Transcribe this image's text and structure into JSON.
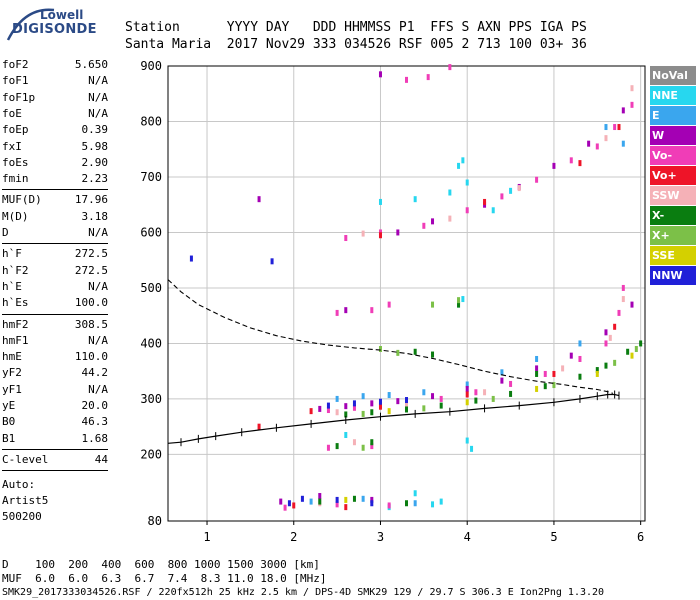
{
  "logo": {
    "line1": "Lowell",
    "line2": "DIGISONDE"
  },
  "header": {
    "line1": "Station      YYYY DAY   DDD HHMMSS P1  FFS S AXN PPS IGA PS",
    "line2": "Santa Maria  2017 Nov29 333 034526 RSF 005 2 713 100 03+ 36"
  },
  "params": {
    "group1": [
      {
        "name": "foF2",
        "value": "5.650"
      },
      {
        "name": "foF1",
        "value": "N/A"
      },
      {
        "name": "foF1p",
        "value": "N/A"
      },
      {
        "name": "foE",
        "value": "N/A"
      },
      {
        "name": "foEp",
        "value": "0.39"
      },
      {
        "name": "fxI",
        "value": "5.98"
      },
      {
        "name": "foEs",
        "value": "2.90"
      },
      {
        "name": "fmin",
        "value": "2.23"
      }
    ],
    "group2": [
      {
        "name": "MUF(D)",
        "value": "17.96"
      },
      {
        "name": "M(D)",
        "value": "3.18"
      },
      {
        "name": "D",
        "value": "N/A"
      }
    ],
    "group3": [
      {
        "name": "h`F",
        "value": "272.5"
      },
      {
        "name": "h`F2",
        "value": "272.5"
      },
      {
        "name": "h`E",
        "value": "N/A"
      },
      {
        "name": "h`Es",
        "value": "100.0"
      }
    ],
    "group4": [
      {
        "name": "hmF2",
        "value": "308.5"
      },
      {
        "name": "hmF1",
        "value": "N/A"
      },
      {
        "name": "hmE",
        "value": "110.0"
      },
      {
        "name": "yF2",
        "value": "44.2"
      },
      {
        "name": "yF1",
        "value": "N/A"
      },
      {
        "name": "yE",
        "value": "20.0"
      },
      {
        "name": "B0",
        "value": "46.3"
      },
      {
        "name": "B1",
        "value": "1.68"
      }
    ],
    "group5": [
      {
        "name": "C-level",
        "value": "44"
      }
    ],
    "auto_label": "Auto:",
    "artist": "Artist5",
    "code": "500200"
  },
  "legend": [
    {
      "label": "NoVal",
      "color": "#8c8c8c"
    },
    {
      "label": "NNE",
      "color": "#27d7ef"
    },
    {
      "label": "E",
      "color": "#3aa6ee"
    },
    {
      "label": "W",
      "color": "#a400b4"
    },
    {
      "label": "Vo-",
      "color": "#f03db7"
    },
    {
      "label": "Vo+",
      "color": "#ee1428"
    },
    {
      "label": "SSW",
      "color": "#f5b1b7"
    },
    {
      "label": "X-",
      "color": "#0a7d10"
    },
    {
      "label": "X+",
      "color": "#7cc048"
    },
    {
      "label": "SSE",
      "color": "#d4d000"
    },
    {
      "label": "NNW",
      "color": "#2020d8"
    }
  ],
  "chart_data": {
    "type": "scatter",
    "title": "",
    "xlabel": "",
    "ylabel": "",
    "xlim": [
      0.55,
      6.05
    ],
    "ylim": [
      80,
      900
    ],
    "x_ticks": [
      "1",
      "2",
      "3",
      "4",
      "5",
      "6"
    ],
    "y_ticks": [
      "80",
      "200",
      "300",
      "400",
      "500",
      "600",
      "700",
      "800",
      "900"
    ],
    "grid": true,
    "series": [
      {
        "name": "NoVal",
        "color": "#8c8c8c",
        "points": []
      },
      {
        "name": "NNE",
        "color": "#27d7ef",
        "points": [
          [
            3.0,
            655
          ],
          [
            3.4,
            660
          ],
          [
            3.8,
            672
          ],
          [
            4.0,
            690
          ],
          [
            3.9,
            720
          ],
          [
            3.95,
            730
          ],
          [
            3.9,
            470
          ],
          [
            3.95,
            480
          ],
          [
            4.0,
            225
          ],
          [
            4.05,
            210
          ],
          [
            3.7,
            115
          ],
          [
            4.3,
            640
          ],
          [
            4.5,
            675
          ],
          [
            2.6,
            235
          ],
          [
            3.1,
            105
          ],
          [
            3.4,
            130
          ],
          [
            3.6,
            110
          ]
        ]
      },
      {
        "name": "E",
        "color": "#3aa6ee",
        "points": [
          [
            2.5,
            300
          ],
          [
            2.8,
            305
          ],
          [
            3.1,
            307
          ],
          [
            3.5,
            312
          ],
          [
            4.0,
            326
          ],
          [
            4.4,
            348
          ],
          [
            4.8,
            372
          ],
          [
            5.3,
            400
          ],
          [
            2.2,
            115
          ],
          [
            2.8,
            120
          ],
          [
            3.4,
            112
          ],
          [
            5.6,
            790
          ],
          [
            5.8,
            760
          ]
        ]
      },
      {
        "name": "W",
        "color": "#a400b4",
        "points": [
          [
            2.3,
            282
          ],
          [
            2.6,
            287
          ],
          [
            2.9,
            292
          ],
          [
            3.2,
            296
          ],
          [
            3.6,
            305
          ],
          [
            4.0,
            318
          ],
          [
            4.4,
            333
          ],
          [
            4.8,
            355
          ],
          [
            5.2,
            378
          ],
          [
            5.6,
            420
          ],
          [
            5.9,
            470
          ],
          [
            1.85,
            115
          ],
          [
            2.3,
            125
          ],
          [
            2.9,
            118
          ],
          [
            3.2,
            600
          ],
          [
            3.6,
            620
          ],
          [
            4.2,
            650
          ],
          [
            4.6,
            682
          ],
          [
            5.0,
            720
          ],
          [
            5.4,
            760
          ],
          [
            5.8,
            820
          ],
          [
            1.6,
            660
          ],
          [
            2.6,
            460
          ],
          [
            3.0,
            885
          ]
        ]
      },
      {
        "name": "Vo-",
        "color": "#f03db7",
        "points": [
          [
            2.4,
            280
          ],
          [
            2.7,
            284
          ],
          [
            3.0,
            289
          ],
          [
            3.3,
            293
          ],
          [
            3.7,
            300
          ],
          [
            4.1,
            312
          ],
          [
            4.5,
            327
          ],
          [
            4.9,
            345
          ],
          [
            5.3,
            372
          ],
          [
            5.6,
            400
          ],
          [
            5.75,
            455
          ],
          [
            5.8,
            500
          ],
          [
            1.9,
            104
          ],
          [
            2.5,
            110
          ],
          [
            3.1,
            108
          ],
          [
            2.4,
            212
          ],
          [
            2.9,
            215
          ],
          [
            2.6,
            590
          ],
          [
            3.0,
            600
          ],
          [
            3.5,
            612
          ],
          [
            4.0,
            640
          ],
          [
            4.4,
            665
          ],
          [
            4.8,
            695
          ],
          [
            5.2,
            730
          ],
          [
            5.5,
            755
          ],
          [
            5.7,
            790
          ],
          [
            5.9,
            830
          ],
          [
            2.5,
            455
          ],
          [
            2.9,
            460
          ],
          [
            3.1,
            470
          ],
          [
            3.3,
            875
          ],
          [
            3.55,
            880
          ],
          [
            3.8,
            898
          ]
        ]
      },
      {
        "name": "Vo+",
        "color": "#ee1428",
        "points": [
          [
            2.2,
            278
          ],
          [
            3.0,
            286
          ],
          [
            4.0,
            308
          ],
          [
            5.0,
            345
          ],
          [
            5.7,
            430
          ],
          [
            3.0,
            595
          ],
          [
            4.2,
            655
          ],
          [
            5.3,
            725
          ],
          [
            5.75,
            790
          ],
          [
            2.0,
            108
          ],
          [
            2.6,
            105
          ],
          [
            1.6,
            250
          ]
        ]
      },
      {
        "name": "SSW",
        "color": "#f5b1b7",
        "points": [
          [
            2.5,
            276
          ],
          [
            3.3,
            290
          ],
          [
            4.2,
            312
          ],
          [
            5.1,
            355
          ],
          [
            5.65,
            410
          ],
          [
            5.8,
            480
          ],
          [
            2.8,
            598
          ],
          [
            3.8,
            625
          ],
          [
            4.6,
            680
          ],
          [
            5.6,
            770
          ],
          [
            5.9,
            860
          ],
          [
            2.3,
            112
          ],
          [
            2.7,
            222
          ]
        ]
      },
      {
        "name": "X-",
        "color": "#0a7d10",
        "points": [
          [
            2.6,
            272
          ],
          [
            2.9,
            276
          ],
          [
            3.3,
            281
          ],
          [
            3.7,
            288
          ],
          [
            4.1,
            297
          ],
          [
            4.5,
            309
          ],
          [
            4.9,
            323
          ],
          [
            5.3,
            340
          ],
          [
            5.6,
            360
          ],
          [
            5.85,
            385
          ],
          [
            6.0,
            400
          ],
          [
            2.3,
            115
          ],
          [
            2.7,
            120
          ],
          [
            3.3,
            112
          ],
          [
            3.4,
            385
          ],
          [
            3.6,
            380
          ],
          [
            3.9,
            470
          ],
          [
            2.5,
            215
          ],
          [
            2.9,
            222
          ],
          [
            4.8,
            345
          ],
          [
            5.5,
            352
          ]
        ]
      },
      {
        "name": "X+",
        "color": "#7cc048",
        "points": [
          [
            2.8,
            273
          ],
          [
            3.5,
            283
          ],
          [
            4.3,
            300
          ],
          [
            5.0,
            325
          ],
          [
            5.7,
            365
          ],
          [
            5.95,
            390
          ],
          [
            3.6,
            470
          ],
          [
            3.9,
            478
          ],
          [
            3.0,
            390
          ],
          [
            3.2,
            383
          ],
          [
            2.8,
            212
          ]
        ]
      },
      {
        "name": "SSE",
        "color": "#d4d000",
        "points": [
          [
            3.1,
            278
          ],
          [
            4.0,
            294
          ],
          [
            4.8,
            318
          ],
          [
            5.5,
            345
          ],
          [
            2.6,
            118
          ],
          [
            5.9,
            378
          ]
        ]
      },
      {
        "name": "NNW",
        "color": "#2020d8",
        "points": [
          [
            2.4,
            288
          ],
          [
            2.7,
            292
          ],
          [
            3.0,
            295
          ],
          [
            3.3,
            298
          ],
          [
            2.1,
            120
          ],
          [
            2.5,
            118
          ],
          [
            2.9,
            112
          ],
          [
            0.82,
            553
          ],
          [
            1.75,
            548
          ],
          [
            1.95,
            112
          ]
        ]
      }
    ],
    "profile_curve": {
      "name": "electron density profile",
      "style": "solid with ticks",
      "points": [
        [
          0.55,
          220
        ],
        [
          0.7,
          222
        ],
        [
          0.9,
          228
        ],
        [
          1.1,
          233
        ],
        [
          1.4,
          240
        ],
        [
          1.8,
          248
        ],
        [
          2.2,
          255
        ],
        [
          2.6,
          262
        ],
        [
          3.0,
          268
        ],
        [
          3.4,
          273
        ],
        [
          3.8,
          277
        ],
        [
          4.2,
          283
        ],
        [
          4.6,
          288
        ],
        [
          5.0,
          294
        ],
        [
          5.3,
          300
        ],
        [
          5.5,
          305
        ],
        [
          5.62,
          308
        ],
        [
          5.7,
          308
        ],
        [
          5.75,
          306
        ]
      ]
    },
    "trace_curve": {
      "name": "model trace",
      "style": "dashed",
      "points": [
        [
          0.55,
          515
        ],
        [
          0.7,
          493
        ],
        [
          0.9,
          470
        ],
        [
          1.2,
          447
        ],
        [
          1.5,
          428
        ],
        [
          1.8,
          414
        ],
        [
          2.1,
          404
        ],
        [
          2.4,
          397
        ],
        [
          2.7,
          392
        ],
        [
          3.0,
          388
        ],
        [
          3.3,
          382
        ],
        [
          3.6,
          373
        ],
        [
          3.9,
          362
        ],
        [
          4.2,
          350
        ],
        [
          4.5,
          340
        ],
        [
          4.8,
          332
        ],
        [
          5.1,
          326
        ],
        [
          5.3,
          321
        ],
        [
          5.5,
          317
        ],
        [
          5.62,
          313
        ],
        [
          5.68,
          310
        ]
      ]
    }
  },
  "footer": {
    "line1": "D    100  200  400  600  800 1000 1500 3000 [km]",
    "line2": "MUF  6.0  6.0  6.3  6.7  7.4  8.3 11.0 18.0 [MHz]",
    "line3": "SMK29_2017333034526.RSF / 220fx512h 25 kHz 2.5 km / DPS-4D SMK29 129 / 29.7 S 306.3 E Ion2Png 1.3.20"
  }
}
